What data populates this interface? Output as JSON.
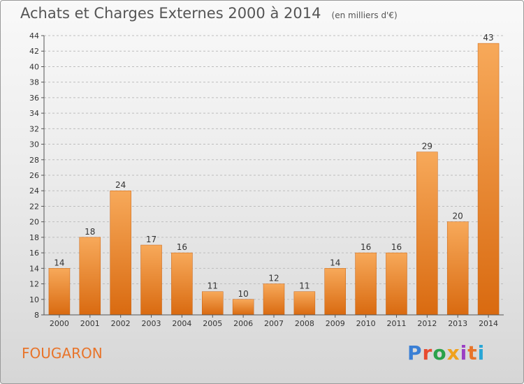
{
  "header": {
    "title": "Achats et Charges Externes 2000 à 2014",
    "unit": "(en milliers d'€)"
  },
  "footer": {
    "commune": "FOUGARON",
    "logo_text": "Proxiti",
    "logo_colors": [
      "#3a7fd5",
      "#e84a2e",
      "#2aa24a",
      "#f0a11c",
      "#9b3fc4",
      "#e8742a",
      "#29a6d6"
    ]
  },
  "colors": {
    "bar_top": "#f7a95a",
    "bar_bottom": "#d96a10",
    "axis": "#555555",
    "grid": "#bdbdbd"
  },
  "chart_data": {
    "type": "bar",
    "title": "Achats et Charges Externes 2000 à 2014",
    "subtitle": "(en milliers d'€)",
    "categories": [
      "2000",
      "2001",
      "2002",
      "2003",
      "2004",
      "2005",
      "2006",
      "2007",
      "2008",
      "2009",
      "2010",
      "2011",
      "2012",
      "2013",
      "2014"
    ],
    "values": [
      14,
      18,
      24,
      17,
      16,
      11,
      10,
      12,
      11,
      14,
      16,
      16,
      29,
      20,
      43
    ],
    "ylim": [
      8,
      44
    ],
    "yticks": [
      8,
      10,
      12,
      14,
      16,
      18,
      20,
      22,
      24,
      26,
      28,
      30,
      32,
      34,
      36,
      38,
      40,
      42,
      44
    ],
    "grid": "horizontal dashed"
  }
}
